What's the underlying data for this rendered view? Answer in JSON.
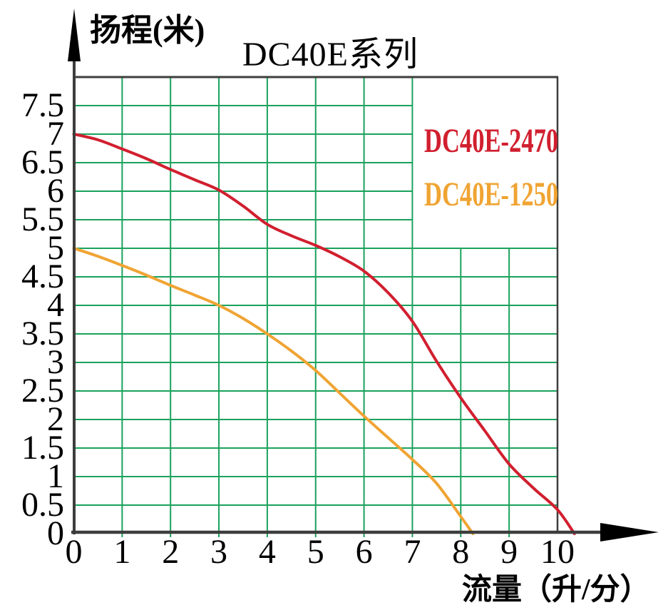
{
  "page": {
    "background": "#ffffff"
  },
  "title": "DC40E系列",
  "legend": [
    {
      "label": "DC40E-2470",
      "color": "#d11f2f"
    },
    {
      "label": "DC40E-1250",
      "color": "#f0a433"
    }
  ],
  "colors": {
    "grid_green": "#1aa25c",
    "axis_dark": "#3d3d3d",
    "series_red": "#d11f2f",
    "series_orange": "#f0a433",
    "legend_background": "#ffffff",
    "text": "#000000"
  },
  "chart_data": {
    "type": "line",
    "title": "DC40E系列",
    "xlabel": "流量（升/分）",
    "ylabel": "扬程(米)",
    "xlim": [
      0,
      10.6
    ],
    "ylim": [
      0,
      8
    ],
    "grid": true,
    "grid_x_step": 1,
    "grid_y_step": 0.5,
    "legend_position": "top-right-inside",
    "x_tick_values": [
      0,
      1,
      2,
      3,
      4,
      5,
      6,
      7,
      8,
      9,
      10
    ],
    "x_tick_labels": [
      "0",
      "1",
      "2",
      "3",
      "4",
      "5",
      "6",
      "7",
      "8",
      "9",
      "10"
    ],
    "y_tick_values": [
      7.5,
      7,
      6.5,
      6,
      5.5,
      5,
      4.5,
      4,
      3.5,
      3,
      2.5,
      2,
      1.5,
      1,
      0.5,
      0
    ],
    "y_tick_labels": [
      "7.5",
      "7",
      "6.5",
      "6",
      "5.5",
      "5",
      "4.5",
      "4",
      "3.5",
      "3",
      "2.5",
      "2",
      "1.5",
      "1",
      "0.5",
      "0"
    ],
    "series": [
      {
        "name": "DC40E-2470",
        "color": "#d11f2f",
        "points": [
          [
            0,
            7.0
          ],
          [
            0.5,
            6.9
          ],
          [
            1,
            6.74
          ],
          [
            1.5,
            6.57
          ],
          [
            2,
            6.38
          ],
          [
            2.5,
            6.2
          ],
          [
            3,
            6.02
          ],
          [
            3.5,
            5.74
          ],
          [
            4,
            5.42
          ],
          [
            4.5,
            5.22
          ],
          [
            5,
            5.05
          ],
          [
            5.5,
            4.85
          ],
          [
            6,
            4.6
          ],
          [
            6.5,
            4.22
          ],
          [
            7,
            3.72
          ],
          [
            7.5,
            3.02
          ],
          [
            8,
            2.38
          ],
          [
            8.5,
            1.8
          ],
          [
            9,
            1.22
          ],
          [
            9.5,
            0.8
          ],
          [
            10,
            0.42
          ],
          [
            10.35,
            0
          ]
        ]
      },
      {
        "name": "DC40E-1250",
        "color": "#f0a433",
        "points": [
          [
            0,
            5.0
          ],
          [
            0.5,
            4.86
          ],
          [
            1,
            4.7
          ],
          [
            1.5,
            4.53
          ],
          [
            2,
            4.35
          ],
          [
            2.5,
            4.18
          ],
          [
            3,
            4.0
          ],
          [
            3.5,
            3.77
          ],
          [
            4,
            3.5
          ],
          [
            4.5,
            3.2
          ],
          [
            5,
            2.86
          ],
          [
            5.5,
            2.46
          ],
          [
            6,
            2.06
          ],
          [
            6.5,
            1.68
          ],
          [
            7,
            1.3
          ],
          [
            7.5,
            0.88
          ],
          [
            8,
            0.3
          ],
          [
            8.25,
            0
          ]
        ]
      }
    ]
  }
}
